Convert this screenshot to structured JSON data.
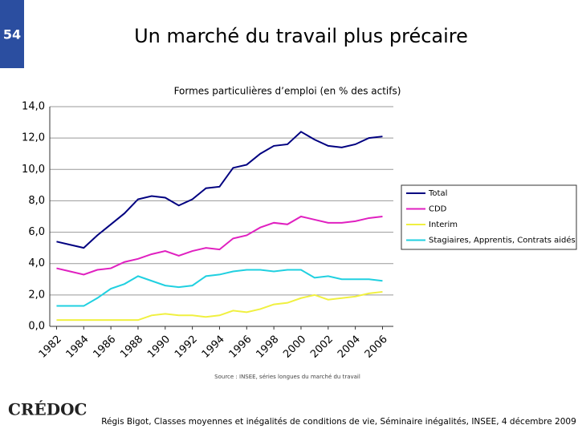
{
  "slide_number": "54",
  "title": "Un marché du travail plus précaire",
  "logo": "CRÉDOC",
  "footer": "Régis Bigot, Classes moyennes et inégalités de conditions de vie, Séminaire inégalités, INSEE, 4 décembre 2009",
  "chart_data": {
    "type": "line",
    "title": "Formes particulières d’emploi (en % des actifs)",
    "source": "Source : INSEE, séries longues du marché du travail",
    "x": [
      1982,
      1983,
      1984,
      1985,
      1986,
      1987,
      1988,
      1989,
      1990,
      1991,
      1992,
      1993,
      1994,
      1995,
      1996,
      1997,
      1998,
      1999,
      2000,
      2001,
      2002,
      2003,
      2004,
      2005,
      2006
    ],
    "xlim": [
      1981.5,
      2006.8
    ],
    "xticks": [
      1982,
      1984,
      1986,
      1988,
      1990,
      1992,
      1994,
      1996,
      1998,
      2000,
      2002,
      2004,
      2006
    ],
    "ylim": [
      0,
      14
    ],
    "yticks": [
      {
        "value": 0,
        "label": "0,0"
      },
      {
        "value": 2,
        "label": "2,0"
      },
      {
        "value": 4,
        "label": "4,0"
      },
      {
        "value": 6,
        "label": "6,0"
      },
      {
        "value": 8,
        "label": "8,0"
      },
      {
        "value": 10,
        "label": "10,0"
      },
      {
        "value": 12,
        "label": "12,0"
      },
      {
        "value": 14,
        "label": "14,0"
      }
    ],
    "grid": true,
    "legend": "right",
    "series": [
      {
        "name": "Total",
        "color": "#000080",
        "values": [
          5.4,
          5.2,
          5.0,
          5.8,
          6.5,
          7.2,
          8.1,
          8.3,
          8.2,
          7.7,
          8.1,
          8.8,
          8.9,
          10.1,
          10.3,
          11.0,
          11.5,
          11.6,
          12.4,
          11.9,
          11.5,
          11.4,
          11.6,
          12.0,
          12.1
        ]
      },
      {
        "name": "CDD",
        "color": "#e020c0",
        "values": [
          3.7,
          3.5,
          3.3,
          3.6,
          3.7,
          4.1,
          4.3,
          4.6,
          4.8,
          4.5,
          4.8,
          5.0,
          4.9,
          5.6,
          5.8,
          6.3,
          6.6,
          6.5,
          7.0,
          6.8,
          6.6,
          6.6,
          6.7,
          6.9,
          7.0
        ]
      },
      {
        "name": "Interim",
        "color": "#f0f040",
        "values": [
          0.4,
          0.4,
          0.4,
          0.4,
          0.4,
          0.4,
          0.4,
          0.7,
          0.8,
          0.7,
          0.7,
          0.6,
          0.7,
          1.0,
          0.9,
          1.1,
          1.4,
          1.5,
          1.8,
          2.0,
          1.7,
          1.8,
          1.9,
          2.1,
          2.2
        ]
      },
      {
        "name": "Stagiaires, Apprentis, Contrats aidés",
        "color": "#20d0e0",
        "values": [
          1.3,
          1.3,
          1.3,
          1.8,
          2.4,
          2.7,
          3.2,
          2.9,
          2.6,
          2.5,
          2.6,
          3.2,
          3.3,
          3.5,
          3.6,
          3.6,
          3.5,
          3.6,
          3.6,
          3.1,
          3.2,
          3.0,
          3.0,
          3.0,
          2.9
        ]
      }
    ]
  }
}
